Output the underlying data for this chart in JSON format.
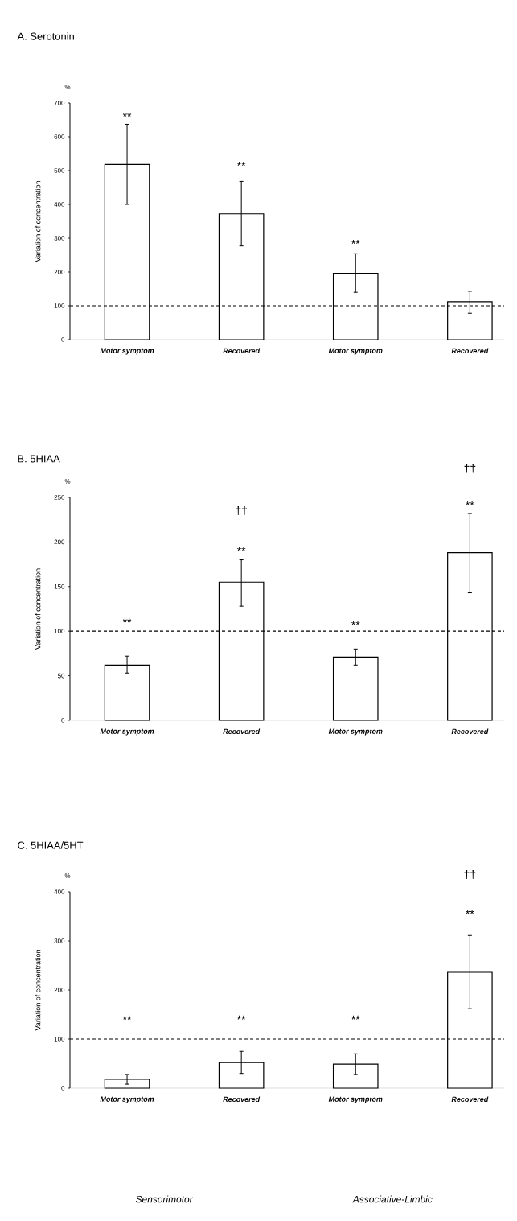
{
  "chart_data": [
    {
      "type": "bar",
      "title": "A. Serotonin",
      "ylabel": "Variation of concentration",
      "categories": [
        "Motor symptom",
        "Recovered",
        "Motor symptom",
        "Recovered"
      ],
      "values": [
        518,
        372,
        196,
        112
      ],
      "errors": [
        [
          400,
          637
        ],
        [
          277,
          468
        ],
        [
          140,
          254
        ],
        [
          78,
          143
        ]
      ],
      "color": "#ffffff",
      "ylim": [
        0,
        700
      ],
      "yticks": [
        0,
        100,
        200,
        300,
        400,
        500,
        600,
        700
      ],
      "ref_lines": [
        {
          "axis": "y",
          "value": 100,
          "color": "#000000",
          "line_style": "dashed"
        }
      ],
      "annotations": [
        "%",
        "**",
        "**",
        "**"
      ]
    },
    {
      "type": "bar",
      "title": "B. 5HIAA",
      "ylabel": "Variation of concentration",
      "categories": [
        "Motor symptom",
        "Recovered",
        "Motor symptom",
        "Recovered"
      ],
      "values": [
        62,
        155,
        71,
        188
      ],
      "errors": [
        [
          53,
          72
        ],
        [
          128,
          180
        ],
        [
          62,
          80
        ],
        [
          143,
          232
        ]
      ],
      "color": "#ffffff",
      "ylim": [
        0,
        250
      ],
      "yticks": [
        0,
        50,
        100,
        150,
        200,
        250
      ],
      "ref_lines": [
        {
          "axis": "y",
          "value": 100,
          "color": "#000000",
          "line_style": "dashed"
        }
      ],
      "annotations": [
        "%",
        "**",
        "**",
        "††",
        "**",
        "**",
        "††"
      ]
    },
    {
      "type": "bar",
      "title": "C. 5HIAA/5HT",
      "ylabel": "Variation of concentration",
      "categories": [
        "Motor symptom",
        "Recovered",
        "Motor symptom",
        "Recovered"
      ],
      "values": [
        18,
        52,
        49,
        236
      ],
      "errors": [
        [
          8,
          28
        ],
        [
          30,
          75
        ],
        [
          28,
          70
        ],
        [
          162,
          311
        ]
      ],
      "color": "#ffffff",
      "ylim": [
        0,
        400
      ],
      "yticks": [
        0,
        100,
        200,
        300,
        400
      ],
      "ref_lines": [
        {
          "axis": "y",
          "value": 100,
          "color": "#000000",
          "line_style": "dashed"
        }
      ],
      "annotations": [
        "%",
        "Sensorimotor",
        "Associative-Limbic",
        "**",
        "**",
        "**",
        "**",
        "††"
      ]
    }
  ]
}
